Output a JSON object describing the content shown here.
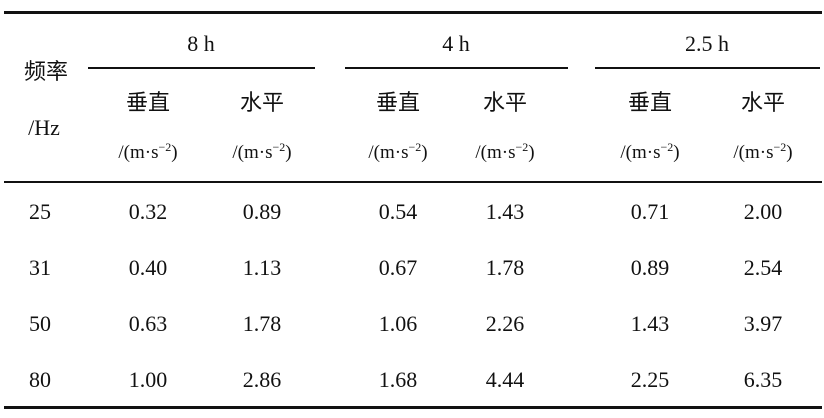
{
  "table": {
    "row_header": {
      "line1": "频率",
      "line2": "/Hz"
    },
    "groups": [
      "8 h",
      "4 h",
      "2.5 h"
    ],
    "subheaders": [
      "垂直",
      "水平"
    ],
    "unit_prefix": "/(m·s",
    "unit_exp": "−2",
    "unit_suffix": ")",
    "rows": [
      {
        "freq": "25",
        "values": [
          "0.32",
          "0.89",
          "0.54",
          "1.43",
          "0.71",
          "2.00"
        ]
      },
      {
        "freq": "31",
        "values": [
          "0.40",
          "1.13",
          "0.67",
          "1.78",
          "0.89",
          "2.54"
        ]
      },
      {
        "freq": "50",
        "values": [
          "0.63",
          "1.78",
          "1.06",
          "2.26",
          "1.43",
          "3.97"
        ]
      },
      {
        "freq": "80",
        "values": [
          "1.00",
          "2.86",
          "1.68",
          "4.44",
          "2.25",
          "6.35"
        ]
      }
    ]
  }
}
